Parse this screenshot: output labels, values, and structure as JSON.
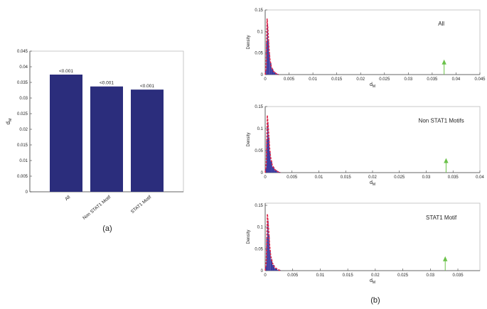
{
  "chart_data": [
    {
      "type": "bar",
      "panel_label": "(a)",
      "ylabel_main": "d",
      "ylabel_sub": "M",
      "ylim": [
        0,
        0.045
      ],
      "yticks": [
        0,
        0.005,
        0.01,
        0.015,
        0.02,
        0.025,
        0.03,
        0.035,
        0.04,
        0.045
      ],
      "ytick_labels": [
        "0",
        "0.005",
        "0.01",
        "0.015",
        "0.02",
        "0.025",
        "0.03",
        "0.035",
        "0.04",
        "0.045"
      ],
      "categories": [
        "All",
        "Non STAT1 Motif",
        "STAT1 Motif"
      ],
      "values": [
        0.0375,
        0.0337,
        0.0327
      ],
      "data_labels": [
        "<0.001",
        "<0.001",
        "<0.001"
      ],
      "bar_color": "#2b2d7c",
      "grid": false
    },
    {
      "type": "histogram",
      "annotation": "All",
      "ylabel": "Density",
      "xlabel_main": "d",
      "xlabel_sub": "M",
      "xlim": [
        0,
        0.045
      ],
      "ylim": [
        0,
        0.15
      ],
      "xticks": [
        0,
        0.005,
        0.01,
        0.015,
        0.02,
        0.025,
        0.03,
        0.035,
        0.04,
        0.045
      ],
      "xtick_labels": [
        "0",
        "0.005",
        "0.01",
        "0.015",
        "0.02",
        "0.025",
        "0.03",
        "0.035",
        "0.04",
        "0.045"
      ],
      "yticks": [
        0,
        0.05,
        0.1,
        0.15
      ],
      "ytick_labels": [
        "0",
        "0.05",
        "0.1",
        "0.15"
      ],
      "observed": 0.0375,
      "arrow_height": 0.035
    },
    {
      "type": "histogram",
      "annotation": "Non STAT1 Motifs",
      "ylabel": "Density",
      "xlabel_main": "d",
      "xlabel_sub": "M",
      "xlim": [
        0,
        0.04
      ],
      "ylim": [
        0,
        0.15
      ],
      "xticks": [
        0,
        0.005,
        0.01,
        0.015,
        0.02,
        0.025,
        0.03,
        0.035,
        0.04
      ],
      "xtick_labels": [
        "0",
        "0.005",
        "0.01",
        "0.015",
        "0.02",
        "0.025",
        "0.03",
        "0.035",
        "0.04"
      ],
      "yticks": [
        0,
        0.05,
        0.1,
        0.15
      ],
      "ytick_labels": [
        "0",
        "0.05",
        "0.1",
        "0.15"
      ],
      "observed": 0.0337,
      "arrow_height": 0.033
    },
    {
      "type": "histogram",
      "annotation": "STAT1 Motif",
      "ylabel": "Density",
      "xlabel_main": "d",
      "xlabel_sub": "M",
      "xlim": [
        0,
        0.039
      ],
      "ylim": [
        0,
        0.155
      ],
      "xticks": [
        0,
        0.005,
        0.01,
        0.015,
        0.02,
        0.025,
        0.03,
        0.035
      ],
      "xtick_labels": [
        "0",
        "0.005",
        "0.01",
        "0.015",
        "0.02",
        "0.025",
        "0.03",
        "0.035"
      ],
      "yticks": [
        0,
        0.05,
        0.1,
        0.15
      ],
      "ytick_labels": [
        "0",
        "0.05",
        "0.1",
        "0.15"
      ],
      "observed": 0.0327,
      "arrow_height": 0.033
    }
  ],
  "panel_b_label": "(b)",
  "colors": {
    "histogram_fill": "#3a3aa0",
    "density_curve": "#e0284a",
    "observed_arrow": "#6bc24a",
    "axis": "#444444"
  },
  "null_density": {
    "x": [
      0.0,
      0.0002,
      0.0004,
      0.0006,
      0.0008,
      0.001,
      0.0013,
      0.0017,
      0.0022,
      0.0028
    ],
    "y": [
      0.0,
      0.02,
      0.13,
      0.1,
      0.06,
      0.035,
      0.018,
      0.008,
      0.003,
      0.0
    ]
  }
}
